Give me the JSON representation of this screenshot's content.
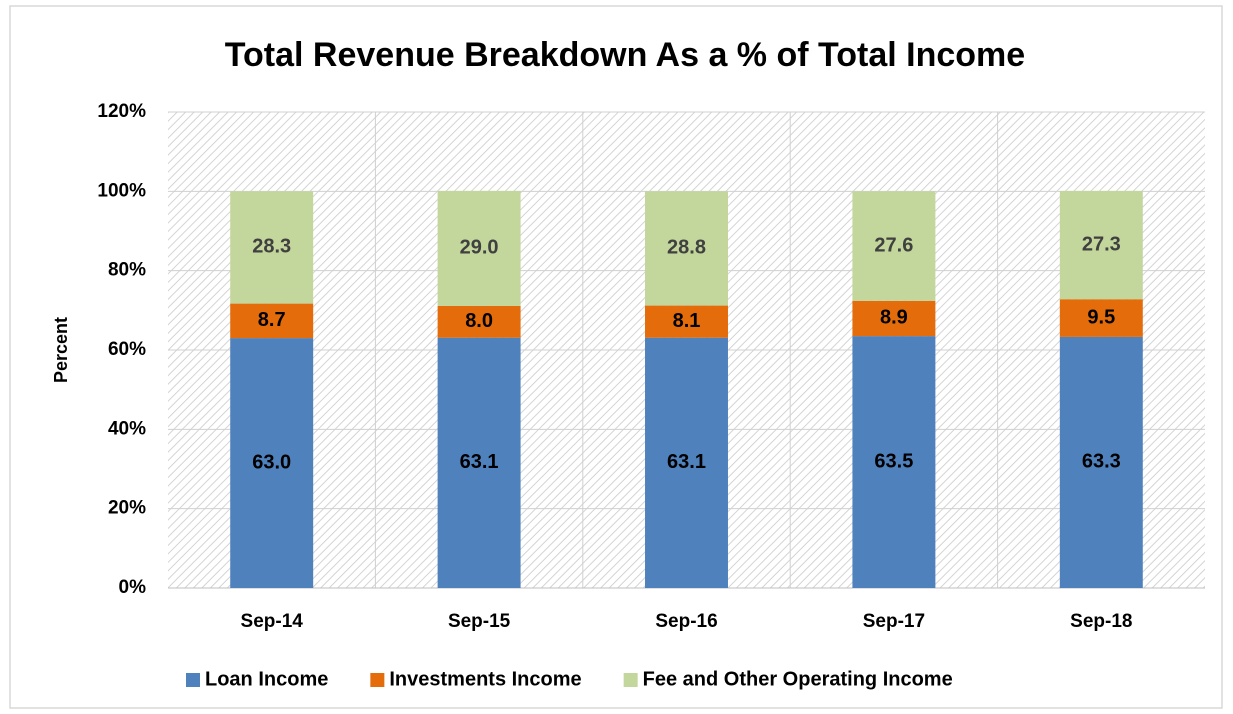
{
  "chart_data": {
    "type": "stacked_bar",
    "title": "Total Revenue Breakdown As a % of Total Income",
    "ylabel": "Percent",
    "categories": [
      "Sep-14",
      "Sep-15",
      "Sep-16",
      "Sep-17",
      "Sep-18"
    ],
    "series": [
      {
        "name": "Loan Income",
        "color": "#4f81bd",
        "values": [
          63.0,
          63.1,
          63.1,
          63.5,
          63.3
        ],
        "value_labels": [
          "63.0",
          "63.1",
          "63.1",
          "63.5",
          "63.3"
        ]
      },
      {
        "name": "Investments Income",
        "color": "#e46c0a",
        "values": [
          8.7,
          8.0,
          8.1,
          8.9,
          9.5
        ],
        "value_labels": [
          "8.7",
          "8.0",
          "8.1",
          "8.9",
          "9.5"
        ]
      },
      {
        "name": "Fee and Other Operating Income",
        "color": "#c3d69b",
        "values": [
          28.3,
          29.0,
          28.8,
          27.6,
          27.3
        ],
        "value_labels": [
          "28.3",
          "29.0",
          "28.8",
          "27.6",
          "27.3"
        ]
      }
    ],
    "ylim": [
      0,
      120
    ],
    "yticks": [
      {
        "value": 0,
        "label": "0%"
      },
      {
        "value": 20,
        "label": "20%"
      },
      {
        "value": 40,
        "label": "40%"
      },
      {
        "value": 60,
        "label": "60%"
      },
      {
        "value": 80,
        "label": "80%"
      },
      {
        "value": 100,
        "label": "100%"
      },
      {
        "value": 120,
        "label": "120%"
      }
    ],
    "grid": true,
    "legend": "bottom"
  }
}
